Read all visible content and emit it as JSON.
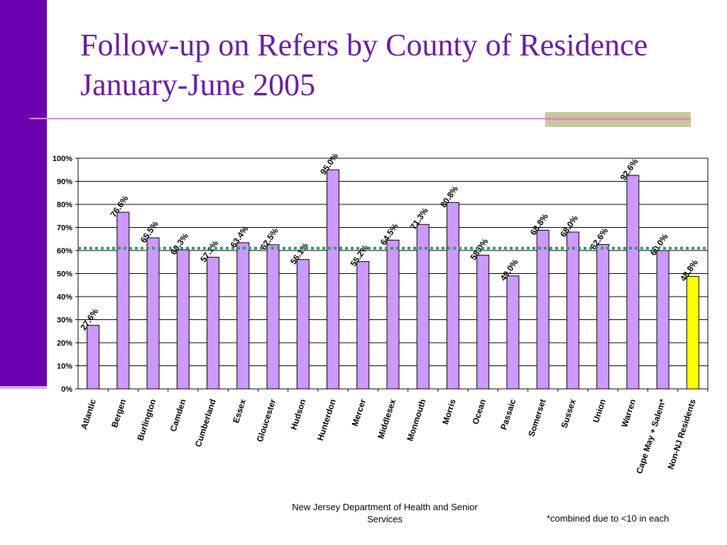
{
  "slide": {
    "title_line1": "Follow-up on Refers by County of Residence",
    "title_line2": "January-June 2005",
    "footer_line1": "New Jersey Department of Health and Senior",
    "footer_line2": "Services",
    "footnote": "*combined due to <10 in each"
  },
  "colors": {
    "sidebar": "#6a00b0",
    "title": "#6a1ca0",
    "bar": "#cc99ff",
    "highlight_bar": "#ffff00",
    "reference_line": "#339966"
  },
  "chart_data": {
    "type": "bar",
    "categories": [
      "Atlantic",
      "Bergen",
      "Burlington",
      "Camden",
      "Cumberland",
      "Essex",
      "Gloucester",
      "Hudson",
      "Hunterdon",
      "Mercer",
      "Middlesex",
      "Monmouth",
      "Morris",
      "Ocean",
      "Passaic",
      "Somerset",
      "Sussex",
      "Union",
      "Warren",
      "Cape May + Salem*",
      "Non-NJ Residents"
    ],
    "values": [
      27.6,
      76.6,
      65.5,
      60.3,
      57.1,
      63.4,
      62.5,
      56.1,
      95.0,
      55.2,
      64.5,
      71.3,
      80.8,
      58.0,
      49.0,
      68.8,
      68.0,
      62.6,
      92.6,
      60.0,
      48.8
    ],
    "data_labels": [
      "27.6%",
      "76.6%",
      "65.5%",
      "60.3%",
      "57.1%",
      "63.4%",
      "62.5%",
      "56.1%",
      "95.0%",
      "55.2%",
      "64.5%",
      "71.3%",
      "80.8%",
      "58.0%",
      "49.0%",
      "68.8%",
      "68.0%",
      "62.6%",
      "92.6%",
      "60.0%",
      "48.8%"
    ],
    "highlight_index": 20,
    "reference_line_value": 61,
    "ylim": [
      0,
      100
    ],
    "yticks": [
      0,
      10,
      20,
      30,
      40,
      50,
      60,
      70,
      80,
      90,
      100
    ],
    "ytick_labels": [
      "0%",
      "10%",
      "20%",
      "30%",
      "40%",
      "50%",
      "60%",
      "70%",
      "80%",
      "90%",
      "100%"
    ],
    "grid": true,
    "legend": "none",
    "title": "",
    "xlabel": "",
    "ylabel": ""
  }
}
